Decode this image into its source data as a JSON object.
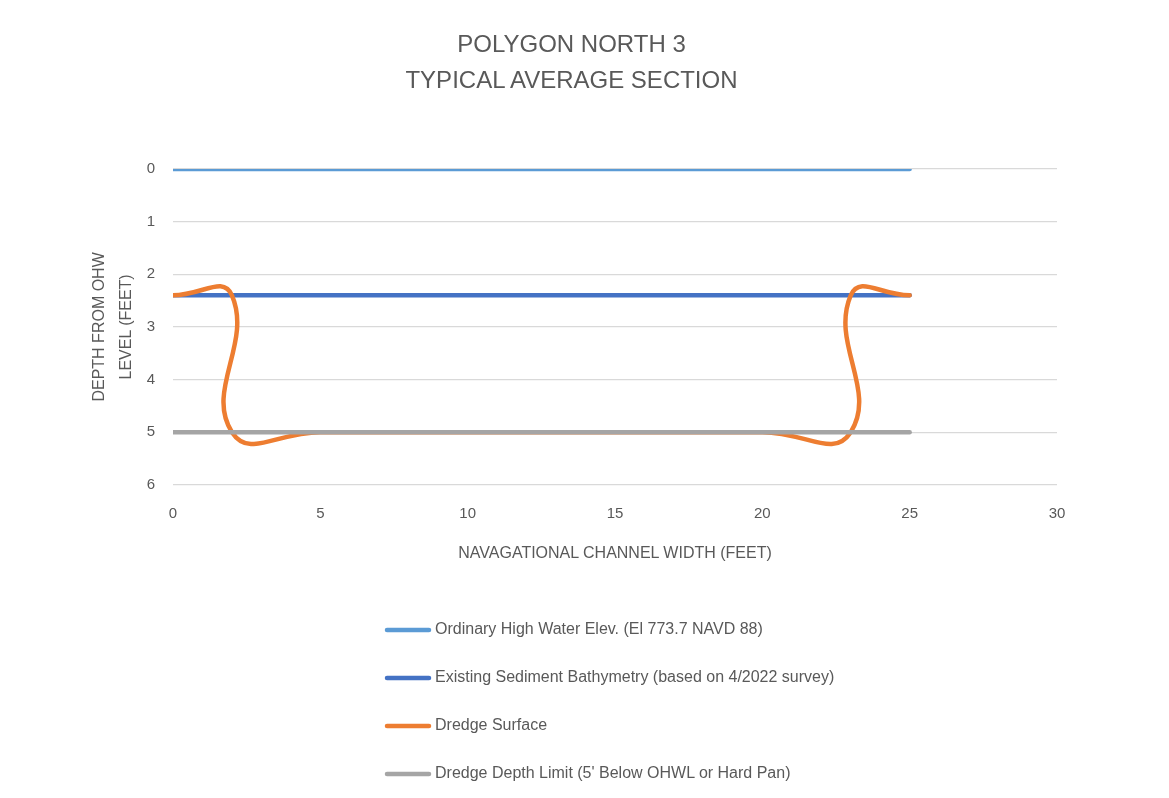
{
  "chart_data": {
    "type": "line",
    "title": "POLYGON NORTH 3\nTYPICAL AVERAGE SECTION",
    "xlabel": "NAVAGATIONAL CHANNEL WIDTH (FEET)",
    "ylabel": "DEPTH FROM OHW LEVEL (FEET)",
    "series": [
      {
        "name": "Ordinary High Water Elev. (El 773.7 NAVD 88)",
        "color": "#5b9bd5",
        "x": [
          0,
          25
        ],
        "values": [
          0,
          0
        ]
      },
      {
        "name": "Existing Sediment Bathymetry (based on 4/2022 survey)",
        "color": "#4472c4",
        "x": [
          0,
          25
        ],
        "values": [
          2.4,
          2.4
        ]
      },
      {
        "name": "Dredge Surface",
        "color": "#ed7d31",
        "x": [
          0,
          2,
          2,
          5,
          20,
          23,
          23,
          25
        ],
        "values": [
          2.4,
          2.4,
          5,
          5,
          5,
          5,
          2.4,
          2.4
        ]
      },
      {
        "name": "Dredge Depth Limit (5' Below OHWL or Hard Pan)",
        "color": "#a5a5a5",
        "x": [
          0,
          25
        ],
        "values": [
          5,
          5
        ]
      }
    ],
    "xlim": [
      0,
      30
    ],
    "xticks": [
      0,
      5,
      10,
      15,
      20,
      25,
      30
    ],
    "ylim": [
      6,
      0
    ],
    "yticks": [
      0,
      1,
      2,
      3,
      4,
      5,
      6
    ],
    "grid": "y",
    "legend": "bottom"
  }
}
